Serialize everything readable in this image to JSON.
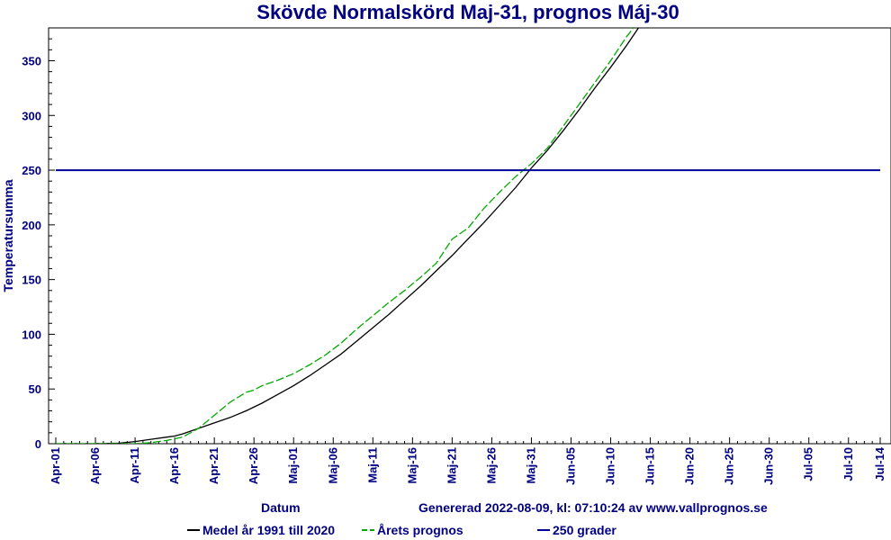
{
  "chart_data": {
    "type": "line",
    "title": "Skövde Normalskörd Maj-31, prognos Máj-30",
    "xlabel": "Datum",
    "ylabel": "Temperatursumma",
    "generated_text": "Genererad 2022-08-09, kl: 07:10:24 av www.vallprognos.se",
    "x_tick_labels": [
      "Apr-01",
      "Apr-06",
      "Apr-11",
      "Apr-16",
      "Apr-21",
      "Apr-26",
      "Maj-01",
      "Maj-06",
      "Maj-11",
      "Maj-16",
      "Maj-21",
      "Maj-26",
      "Maj-31",
      "Jun-05",
      "Jun-10",
      "Jun-15",
      "Jun-20",
      "Jun-25",
      "Jun-30",
      "Jul-05",
      "Jul-10",
      "Jul-14"
    ],
    "x_tick_days": [
      0,
      5,
      10,
      15,
      20,
      25,
      30,
      35,
      40,
      45,
      50,
      55,
      60,
      65,
      70,
      75,
      80,
      85,
      90,
      95,
      100,
      104
    ],
    "x_range_days": [
      0,
      104
    ],
    "ylim": [
      0,
      380
    ],
    "y_ticks": [
      0,
      50,
      100,
      150,
      200,
      250,
      300,
      350
    ],
    "grid": false,
    "legend_position": "bottom",
    "series": [
      {
        "name": "Medel år 1991 till 2020",
        "color": "#000000",
        "dash": "solid",
        "points": [
          [
            0,
            0
          ],
          [
            5,
            0
          ],
          [
            8,
            0.5
          ],
          [
            10,
            2
          ],
          [
            12,
            4
          ],
          [
            14,
            6
          ],
          [
            15,
            7
          ],
          [
            16,
            9
          ],
          [
            18,
            14
          ],
          [
            20,
            19
          ],
          [
            22,
            24
          ],
          [
            24,
            30
          ],
          [
            26,
            37
          ],
          [
            28,
            45
          ],
          [
            30,
            53
          ],
          [
            32,
            62
          ],
          [
            34,
            72
          ],
          [
            36,
            82
          ],
          [
            38,
            94
          ],
          [
            40,
            106
          ],
          [
            42,
            118
          ],
          [
            44,
            131
          ],
          [
            46,
            144
          ],
          [
            48,
            158
          ],
          [
            50,
            172
          ],
          [
            52,
            187
          ],
          [
            54,
            202
          ],
          [
            56,
            218
          ],
          [
            58,
            234
          ],
          [
            60,
            252
          ],
          [
            62,
            268
          ],
          [
            64,
            286
          ],
          [
            66,
            305
          ],
          [
            68,
            325
          ],
          [
            70,
            344
          ],
          [
            72,
            364
          ],
          [
            73.5,
            380
          ]
        ]
      },
      {
        "name": "Årets prognos",
        "color": "#00aa00",
        "dash": "dashed",
        "points": [
          [
            0,
            0
          ],
          [
            5,
            0
          ],
          [
            10,
            0
          ],
          [
            12,
            1
          ],
          [
            14,
            3
          ],
          [
            16,
            6
          ],
          [
            18,
            14
          ],
          [
            20,
            26
          ],
          [
            22,
            38
          ],
          [
            24,
            47
          ],
          [
            25,
            49
          ],
          [
            26,
            53
          ],
          [
            28,
            58
          ],
          [
            30,
            64
          ],
          [
            32,
            72
          ],
          [
            34,
            81
          ],
          [
            36,
            92
          ],
          [
            38,
            105
          ],
          [
            40,
            117
          ],
          [
            42,
            129
          ],
          [
            44,
            140
          ],
          [
            46,
            152
          ],
          [
            48,
            165
          ],
          [
            50,
            187
          ],
          [
            52,
            197
          ],
          [
            54,
            215
          ],
          [
            56,
            230
          ],
          [
            58,
            244
          ],
          [
            60,
            256
          ],
          [
            62,
            270
          ],
          [
            64,
            290
          ],
          [
            66,
            310
          ],
          [
            68,
            330
          ],
          [
            70,
            350
          ],
          [
            72,
            372
          ],
          [
            73,
            381
          ]
        ]
      },
      {
        "name": "250 grader",
        "color": "#000099",
        "dash": "solid",
        "points": [
          [
            0,
            250
          ],
          [
            104,
            250
          ]
        ]
      }
    ]
  }
}
